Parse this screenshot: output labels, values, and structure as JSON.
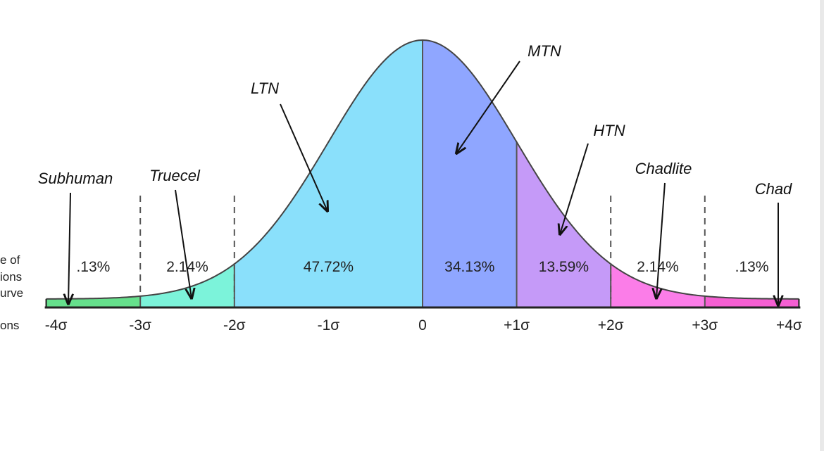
{
  "chart_data": {
    "type": "area",
    "title": "",
    "xlabel": "",
    "ylabel": "",
    "xlim": [
      -4,
      4
    ],
    "x_tick_labels": [
      "-4σ",
      "-3σ",
      "-2σ",
      "-1σ",
      "0",
      "+1σ",
      "+2σ",
      "+3σ",
      "+4σ"
    ],
    "x_ticks": [
      -4,
      -3,
      -2,
      -1,
      0,
      1,
      2,
      3,
      4
    ],
    "dashed_lines_at": [
      -3,
      -2,
      2,
      3
    ],
    "regions": [
      {
        "from": -4,
        "to": -3,
        "label": ".13%",
        "color": "#66e08c"
      },
      {
        "from": -3,
        "to": -2,
        "label": "2.14%",
        "color": "#7cf3da"
      },
      {
        "from": -2,
        "to": 0,
        "label": "47.72%",
        "color": "#8ae0fb"
      },
      {
        "from": 0,
        "to": 1,
        "label": "34.13%",
        "color": "#8fa6ff"
      },
      {
        "from": 1,
        "to": 2,
        "label": "13.59%",
        "color": "#c59af8"
      },
      {
        "from": 2,
        "to": 3,
        "label": "2.14%",
        "color": "#fb7de8"
      },
      {
        "from": 3,
        "to": 4,
        "label": ".13%",
        "color": "#f55fd2"
      }
    ],
    "annotations": [
      {
        "text": "Subhuman",
        "points_to": -3.75
      },
      {
        "text": "Truecel",
        "points_to": -2.5
      },
      {
        "text": "LTN",
        "points_to": -1
      },
      {
        "text": "MTN",
        "points_to": 0.35
      },
      {
        "text": "HTN",
        "points_to": 1.45
      },
      {
        "text": "Chadlite",
        "points_to": 2.5
      },
      {
        "text": "Chad",
        "points_to": 3.75
      }
    ],
    "side_label_fragments": [
      "e of",
      "ions",
      "urve",
      "ons"
    ]
  },
  "colors": {
    "curve": "#444444",
    "axis": "#222222",
    "divider": "#555555",
    "arrow": "#111111"
  }
}
